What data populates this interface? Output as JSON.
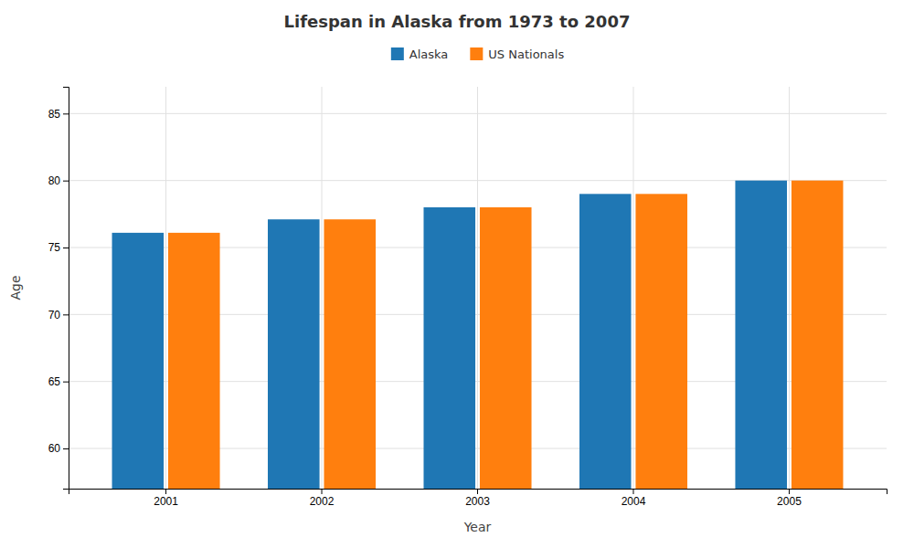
{
  "chart_data": {
    "type": "bar",
    "title": "Lifespan in Alaska from 1973 to 2007",
    "x_label": "Year",
    "y_label": "Age",
    "categories": [
      "2001",
      "2002",
      "2003",
      "2004",
      "2005"
    ],
    "series": [
      {
        "name": "Alaska",
        "values": [
          76.1,
          77.1,
          78.0,
          79.0,
          80.0
        ]
      },
      {
        "name": "US Nationals",
        "values": [
          76.1,
          77.1,
          78.0,
          79.0,
          80.0
        ]
      }
    ],
    "ylim": [
      57,
      87
    ],
    "yticks": [
      60,
      65,
      70,
      75,
      80,
      85
    ],
    "grid": true,
    "legend": "top"
  }
}
